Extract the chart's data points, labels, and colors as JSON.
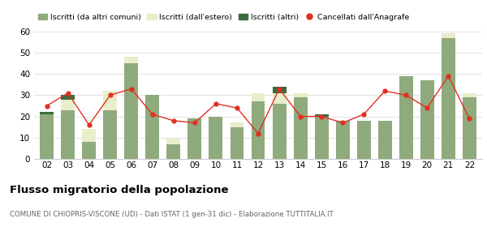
{
  "years": [
    "02",
    "03",
    "04",
    "05",
    "06",
    "07",
    "08",
    "09",
    "10",
    "11",
    "12",
    "13",
    "14",
    "15",
    "16",
    "17",
    "18",
    "19",
    "20",
    "21",
    "22"
  ],
  "iscritti_altri_comuni": [
    21,
    23,
    8,
    23,
    45,
    30,
    7,
    19,
    20,
    15,
    27,
    26,
    29,
    20,
    18,
    18,
    18,
    39,
    37,
    57,
    29
  ],
  "iscritti_estero": [
    0,
    5,
    6,
    9,
    3,
    0,
    3,
    0,
    0,
    2,
    4,
    5,
    2,
    0,
    0,
    0,
    0,
    0,
    0,
    2,
    2
  ],
  "iscritti_altri": [
    1,
    2,
    0,
    0,
    0,
    0,
    0,
    0,
    0,
    0,
    0,
    3,
    0,
    1,
    0,
    0,
    0,
    0,
    0,
    0,
    0
  ],
  "cancellati": [
    25,
    31,
    16,
    30,
    33,
    21,
    18,
    17,
    26,
    24,
    12,
    33,
    20,
    20,
    17,
    21,
    32,
    30,
    24,
    39,
    19
  ],
  "color_altri_comuni": "#8faa7c",
  "color_estero": "#e8edca",
  "color_altri": "#3d6b3e",
  "color_cancellati": "#e03020",
  "title": "Flusso migratorio della popolazione",
  "subtitle": "COMUNE DI CHIOPRIS-VISCONE (UD) - Dati ISTAT (1 gen-31 dic) - Elaborazione TUTTITALIA.IT",
  "legend_labels": [
    "Iscritti (da altri comuni)",
    "Iscritti (dall'estero)",
    "Iscritti (altri)",
    "Cancellati dall'Anagrafe"
  ],
  "ylim": [
    0,
    62
  ],
  "yticks": [
    0,
    10,
    20,
    30,
    40,
    50,
    60
  ]
}
